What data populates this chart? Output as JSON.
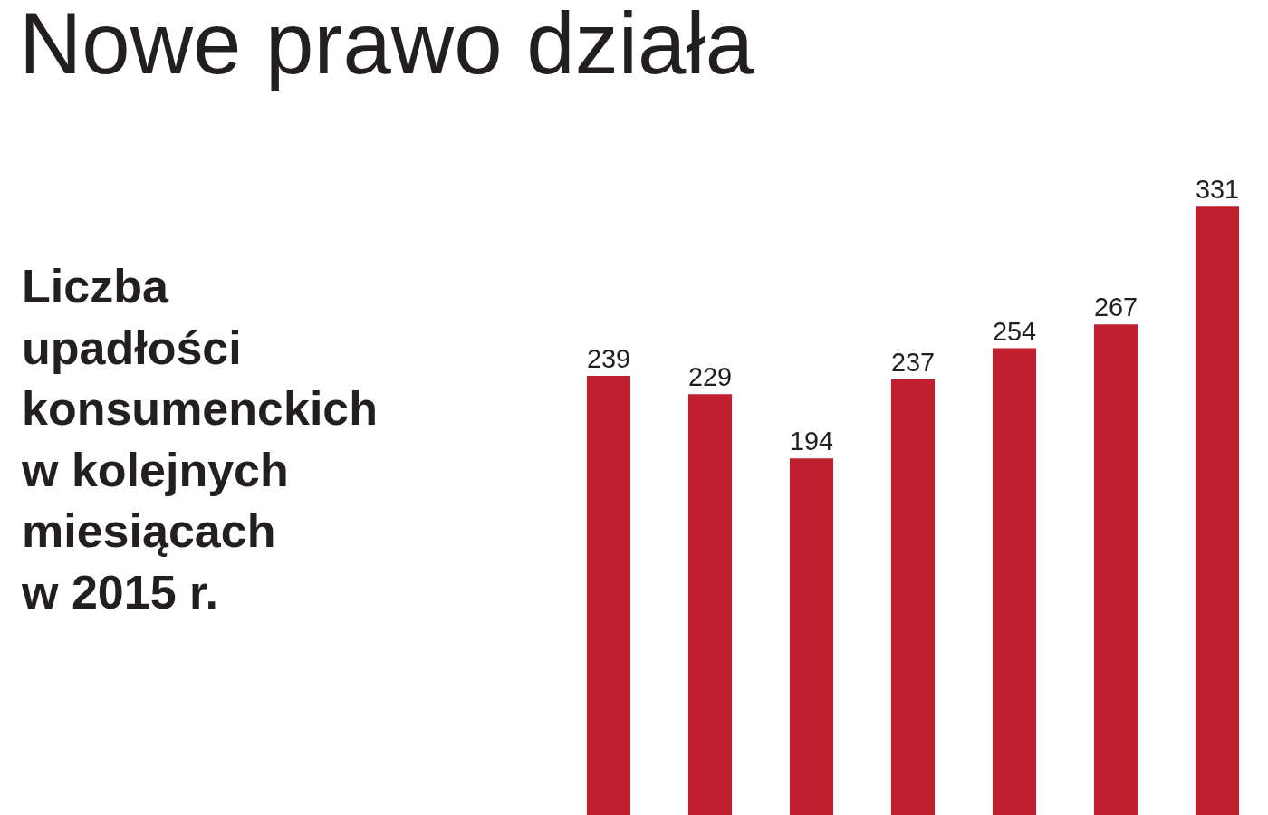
{
  "chart_data": {
    "type": "bar",
    "title": "Nowe prawo działa",
    "subtitle": "Liczba\nupadłości\nkonsumenckich\nw kolejnych\nmiesiącach\nw 2015 r.",
    "categories": [
      null,
      null,
      null,
      null,
      null,
      null,
      null
    ],
    "values": [
      239,
      229,
      194,
      237,
      254,
      267,
      331
    ],
    "color": "#c01f2f",
    "tick_labels": false,
    "data_labels": true,
    "legend": false
  }
}
